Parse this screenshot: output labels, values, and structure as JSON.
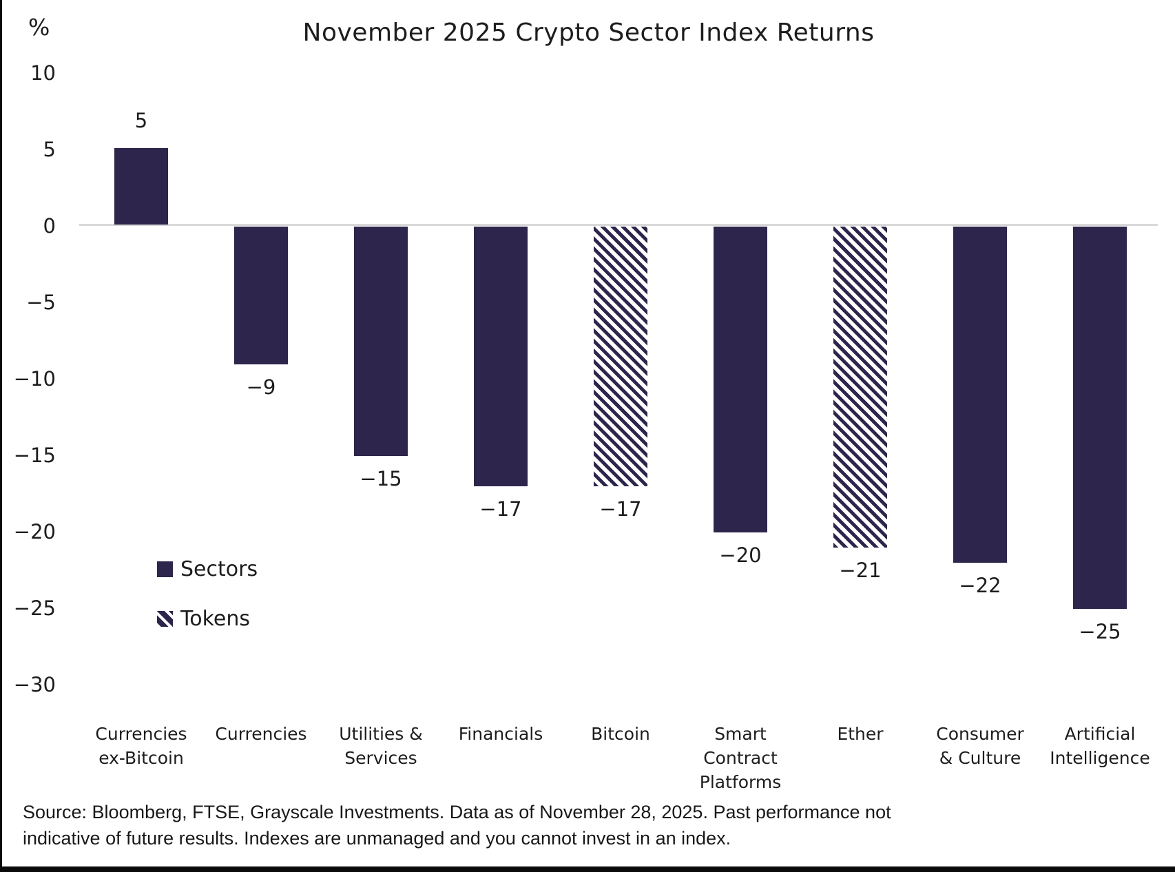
{
  "title": "November 2025 Crypto Sector Index Returns",
  "y_axis": {
    "unit_label": "%",
    "tick_values": [
      10,
      5,
      0,
      -5,
      -10,
      -15,
      -20,
      -25,
      -30
    ],
    "tick_labels": [
      "10",
      "5",
      "0",
      "−5",
      "−10",
      "−15",
      "−20",
      "−25",
      "−30"
    ]
  },
  "legend": {
    "items": [
      {
        "label": "Sectors",
        "style": "solid"
      },
      {
        "label": "Tokens",
        "style": "hatched"
      }
    ]
  },
  "source_text": "Source: Bloomberg, FTSE, Grayscale Investments. Data as of November 28, 2025. Past performance not\nindicative of future results. Indexes are unmanaged and you cannot invest in an index.",
  "colors": {
    "bar": "#2E254C",
    "axis_line": "#D9D9D9",
    "text": "#1D1D1D",
    "background": "#FFFFFF",
    "frame_border": "#0A0A0A"
  },
  "chart_data": {
    "type": "bar",
    "title": "November 2025 Crypto Sector Index Returns",
    "xlabel": "",
    "ylabel": "%",
    "ylim": [
      -30,
      10
    ],
    "y_tick_step": 5,
    "grid": false,
    "legend_position": "inside lower-left",
    "categories": [
      "Currencies ex-Bitcoin",
      "Currencies",
      "Utilities & Services",
      "Financials",
      "Bitcoin",
      "Smart Contract Platforms",
      "Ether",
      "Consumer & Culture",
      "Artificial Intelligence"
    ],
    "category_label_lines": [
      [
        "Currencies",
        "ex-Bitcoin"
      ],
      [
        "Currencies"
      ],
      [
        "Utilities &",
        "Services"
      ],
      [
        "Financials"
      ],
      [
        "Bitcoin"
      ],
      [
        "Smart",
        "Contract",
        "Platforms"
      ],
      [
        "Ether"
      ],
      [
        "Consumer",
        "& Culture"
      ],
      [
        "Artificial",
        "Intelligence"
      ]
    ],
    "values": [
      5,
      -9,
      -15,
      -17,
      -17,
      -20,
      -21,
      -22,
      -25
    ],
    "value_labels": [
      "5",
      "−9",
      "−15",
      "−17",
      "−17",
      "−20",
      "−21",
      "−22",
      "−25"
    ],
    "bar_styles": [
      "solid",
      "solid",
      "solid",
      "solid",
      "hatched",
      "solid",
      "hatched",
      "solid",
      "solid"
    ],
    "series": [
      {
        "name": "Sectors",
        "style": "solid"
      },
      {
        "name": "Tokens",
        "style": "hatched"
      }
    ]
  }
}
